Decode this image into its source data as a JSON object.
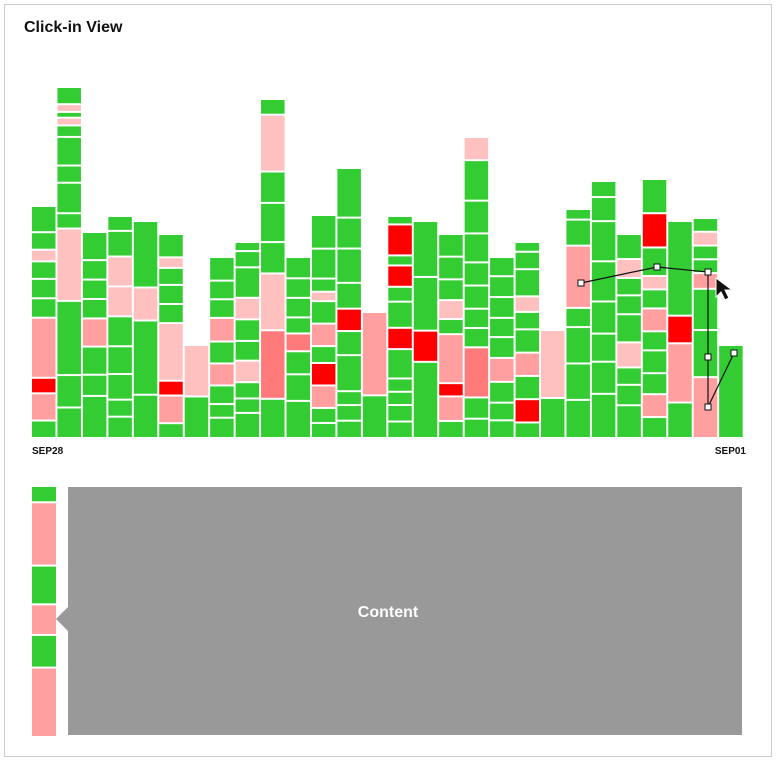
{
  "title": "Click-in View",
  "x_axis": {
    "start_label": "SEP28",
    "end_label": "SEP01"
  },
  "panel": {
    "label": "Content"
  }
}
